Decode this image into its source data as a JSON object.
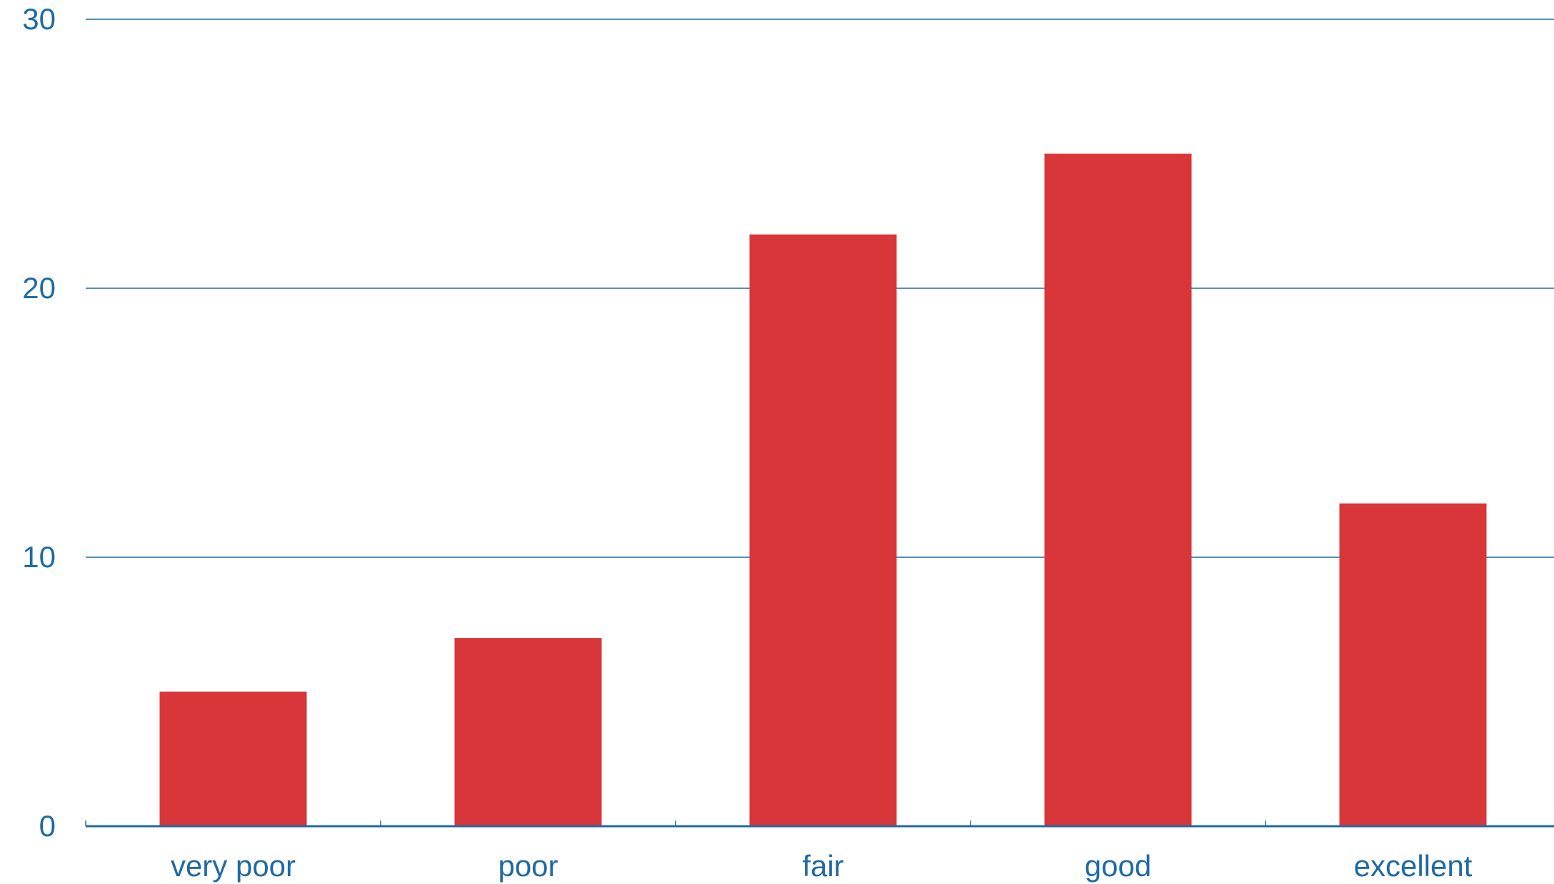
{
  "colors": {
    "bar": "#d93639",
    "axis": "#1f6aa5",
    "text": "#1f6aa5",
    "background": "#ffffff"
  },
  "chart_data": {
    "type": "bar",
    "title": "",
    "xlabel": "",
    "ylabel": "",
    "categories": [
      "very poor",
      "poor",
      "fair",
      "good",
      "excellent"
    ],
    "values": [
      5,
      7,
      22,
      25,
      12
    ],
    "ylim": [
      0,
      30
    ],
    "yticks": [
      0,
      10,
      20,
      30
    ],
    "ytick_labels": [
      "0",
      "10",
      "20",
      "30"
    ],
    "grid": true,
    "legend": "none"
  }
}
